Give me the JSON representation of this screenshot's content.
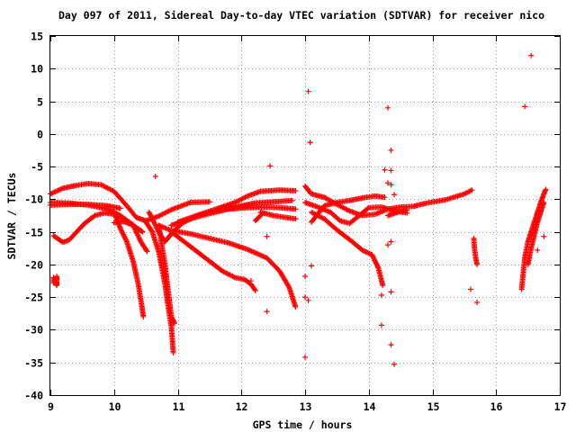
{
  "chart_data": {
    "type": "scatter",
    "title": "Day 097 of 2011, Sidereal Day-to-day VTEC variation (SDTVAR) for receiver nico",
    "xlabel": "GPS time / hours",
    "ylabel": "SDTVAR / TECUs",
    "xlim": [
      9,
      17
    ],
    "ylim": [
      -40,
      15
    ],
    "xticks": [
      "9",
      "10",
      "11",
      "12",
      "13",
      "14",
      "15",
      "16",
      "17"
    ],
    "yticks": [
      "15",
      "10",
      "5",
      "0",
      "-5",
      "-10",
      "-15",
      "-20",
      "-25",
      "-30",
      "-35",
      "-40"
    ],
    "grid": true,
    "marker": "plus",
    "color": "#ff0000",
    "series": [
      {
        "points": [
          [
            9.0,
            -9.2
          ],
          [
            9.2,
            -8.3
          ],
          [
            9.4,
            -7.9
          ],
          [
            9.6,
            -7.6
          ],
          [
            9.8,
            -7.8
          ],
          [
            10.0,
            -8.8
          ],
          [
            10.2,
            -11.0
          ],
          [
            10.35,
            -12.8
          ],
          [
            10.5,
            -13.3
          ],
          [
            10.7,
            -12.6
          ],
          [
            10.9,
            -11.6
          ],
          [
            11.2,
            -10.5
          ],
          [
            11.5,
            -10.4
          ]
        ]
      },
      {
        "points": [
          [
            9.0,
            -10.5
          ],
          [
            9.3,
            -10.6
          ],
          [
            9.6,
            -10.9
          ],
          [
            9.9,
            -11.5
          ],
          [
            10.1,
            -12.5
          ],
          [
            10.3,
            -14.0
          ],
          [
            10.45,
            -15.0
          ]
        ]
      },
      {
        "points": [
          [
            9.0,
            -10.9
          ],
          [
            9.3,
            -10.8
          ],
          [
            9.6,
            -10.8
          ],
          [
            9.9,
            -11.0
          ],
          [
            10.1,
            -11.4
          ]
        ]
      },
      {
        "points": [
          [
            9.05,
            -15.6
          ],
          [
            9.2,
            -16.6
          ],
          [
            9.3,
            -16.2
          ],
          [
            9.45,
            -14.6
          ],
          [
            9.55,
            -13.6
          ],
          [
            9.7,
            -12.5
          ],
          [
            9.85,
            -12.1
          ],
          [
            10.0,
            -12.3
          ],
          [
            10.15,
            -13.0
          ],
          [
            10.3,
            -13.9
          ]
        ]
      },
      {
        "points": [
          [
            10.0,
            -13.6
          ],
          [
            10.15,
            -13.4
          ],
          [
            10.3,
            -14.0
          ],
          [
            10.42,
            -16.5
          ],
          [
            10.52,
            -18.0
          ]
        ]
      },
      {
        "points": [
          [
            10.0,
            -12.0
          ],
          [
            10.1,
            -14.5
          ],
          [
            10.2,
            -16.5
          ],
          [
            10.3,
            -19.5
          ],
          [
            10.38,
            -23.0
          ],
          [
            10.43,
            -26.0
          ],
          [
            10.46,
            -28.0
          ]
        ]
      },
      {
        "points": [
          [
            10.5,
            -13.5
          ],
          [
            10.6,
            -15.0
          ],
          [
            10.7,
            -18.0
          ],
          [
            10.8,
            -23.0
          ],
          [
            10.85,
            -26.5
          ],
          [
            10.9,
            -29.5
          ],
          [
            10.93,
            -33.5
          ]
        ]
      },
      {
        "points": [
          [
            10.7,
            -14.0
          ],
          [
            10.75,
            -17.0
          ],
          [
            10.8,
            -20.0
          ],
          [
            10.85,
            -24.0
          ],
          [
            10.9,
            -28.0
          ],
          [
            10.95,
            -29.0
          ]
        ]
      },
      {
        "points": [
          [
            10.55,
            -12.0
          ],
          [
            10.7,
            -15.0
          ],
          [
            10.8,
            -16.5
          ],
          [
            10.9,
            -15.3
          ],
          [
            11.05,
            -13.8
          ],
          [
            11.3,
            -12.5
          ],
          [
            11.6,
            -11.8
          ],
          [
            11.9,
            -11.2
          ],
          [
            12.2,
            -10.6
          ],
          [
            12.5,
            -10.4
          ],
          [
            12.8,
            -10.2
          ]
        ]
      },
      {
        "points": [
          [
            10.9,
            -14.0
          ],
          [
            11.2,
            -13.0
          ],
          [
            11.5,
            -12.2
          ],
          [
            11.8,
            -11.5
          ],
          [
            12.1,
            -11.0
          ]
        ]
      },
      {
        "points": [
          [
            11.0,
            -13.5
          ],
          [
            11.3,
            -12.5
          ],
          [
            11.6,
            -11.5
          ],
          [
            11.9,
            -10.5
          ],
          [
            12.1,
            -9.5
          ],
          [
            12.3,
            -8.8
          ],
          [
            12.6,
            -8.6
          ],
          [
            12.85,
            -8.7
          ]
        ]
      },
      {
        "points": [
          [
            11.8,
            -11.5
          ],
          [
            12.1,
            -11.3
          ],
          [
            12.4,
            -11.2
          ],
          [
            12.6,
            -11.3
          ],
          [
            12.85,
            -11.5
          ]
        ]
      },
      {
        "points": [
          [
            12.3,
            -12.0
          ],
          [
            12.5,
            -12.5
          ],
          [
            12.7,
            -12.8
          ],
          [
            12.85,
            -13.0
          ]
        ]
      },
      {
        "points": [
          [
            10.7,
            -14.0
          ],
          [
            10.9,
            -14.8
          ],
          [
            11.2,
            -15.3
          ],
          [
            11.5,
            -16.0
          ],
          [
            11.8,
            -16.7
          ],
          [
            12.1,
            -17.7
          ],
          [
            12.4,
            -19.0
          ],
          [
            12.6,
            -21.0
          ],
          [
            12.75,
            -23.5
          ],
          [
            12.85,
            -26.5
          ]
        ]
      },
      {
        "points": [
          [
            10.9,
            -15.0
          ],
          [
            11.1,
            -16.5
          ],
          [
            11.3,
            -18.0
          ],
          [
            11.5,
            -19.5
          ],
          [
            11.7,
            -21.0
          ],
          [
            11.9,
            -22.0
          ],
          [
            12.05,
            -22.3
          ],
          [
            12.15,
            -23.0
          ],
          [
            12.22,
            -24.0
          ]
        ]
      },
      {
        "points": [
          [
            13.0,
            -8.0
          ],
          [
            13.1,
            -9.2
          ],
          [
            13.3,
            -9.7
          ],
          [
            13.5,
            -10.8
          ],
          [
            13.7,
            -11.8
          ],
          [
            13.9,
            -12.5
          ],
          [
            14.1,
            -12.3
          ],
          [
            14.3,
            -11.5
          ],
          [
            14.5,
            -11.2
          ],
          [
            14.7,
            -11.1
          ],
          [
            14.9,
            -10.6
          ],
          [
            15.2,
            -10.1
          ],
          [
            15.5,
            -9.2
          ],
          [
            15.62,
            -8.6
          ]
        ]
      },
      {
        "points": [
          [
            13.0,
            -10.5
          ],
          [
            13.2,
            -11.2
          ],
          [
            13.4,
            -12.0
          ],
          [
            13.55,
            -13.3
          ],
          [
            13.7,
            -13.7
          ],
          [
            13.85,
            -12.5
          ],
          [
            14.0,
            -11.3
          ],
          [
            14.2,
            -11.2
          ],
          [
            14.4,
            -11.8
          ],
          [
            14.6,
            -12.1
          ]
        ]
      },
      {
        "points": [
          [
            13.1,
            -13.5
          ],
          [
            13.3,
            -11.0
          ],
          [
            13.5,
            -10.5
          ],
          [
            13.7,
            -10.2
          ],
          [
            13.9,
            -9.8
          ],
          [
            14.1,
            -9.5
          ],
          [
            14.25,
            -9.7
          ]
        ]
      },
      {
        "points": [
          [
            13.1,
            -12.0
          ],
          [
            13.3,
            -13.0
          ],
          [
            13.5,
            -14.7
          ],
          [
            13.7,
            -16.2
          ],
          [
            13.9,
            -17.8
          ],
          [
            14.05,
            -18.5
          ],
          [
            14.15,
            -20.5
          ],
          [
            14.22,
            -23.2
          ]
        ]
      },
      {
        "points": [
          [
            14.3,
            -12.5
          ],
          [
            14.45,
            -12.0
          ],
          [
            14.6,
            -11.7
          ]
        ]
      },
      {
        "points": [
          [
            12.22,
            -13.3
          ],
          [
            12.27,
            -12.8
          ],
          [
            12.32,
            -12.3
          ]
        ]
      },
      {
        "points": [
          [
            16.4,
            -23.8
          ],
          [
            16.45,
            -19.0
          ],
          [
            16.5,
            -16.5
          ],
          [
            16.55,
            -15.0
          ],
          [
            16.6,
            -13.5
          ],
          [
            16.65,
            -12.0
          ],
          [
            16.7,
            -10.5
          ],
          [
            16.75,
            -9.2
          ],
          [
            16.78,
            -8.5
          ]
        ]
      },
      {
        "points": [
          [
            16.5,
            -20.0
          ],
          [
            16.55,
            -17.5
          ],
          [
            16.6,
            -15.5
          ],
          [
            16.65,
            -13.5
          ],
          [
            16.7,
            -12.0
          ],
          [
            16.75,
            -10.5
          ]
        ]
      },
      {
        "points": [
          [
            15.65,
            -16.0
          ],
          [
            15.66,
            -17.5
          ],
          [
            15.68,
            -19.0
          ],
          [
            15.7,
            -20.0
          ]
        ]
      },
      {
        "points": [
          [
            9.1,
            -21.8
          ],
          [
            9.1,
            -22.5
          ],
          [
            9.1,
            -23.2
          ],
          [
            9.05,
            -22.0
          ],
          [
            9.05,
            -22.8
          ]
        ]
      },
      {
        "points": [
          [
            10.65,
            -6.5
          ],
          [
            12.45,
            -4.9
          ],
          [
            12.4,
            -15.7
          ],
          [
            12.15,
            -22.5
          ],
          [
            12.4,
            -27.2
          ],
          [
            13.0,
            -21.8
          ],
          [
            13.0,
            -25.0
          ],
          [
            13.05,
            -25.5
          ],
          [
            13.0,
            -34.2
          ],
          [
            13.1,
            -20.2
          ],
          [
            13.05,
            6.5
          ],
          [
            13.08,
            -1.3
          ],
          [
            14.3,
            4.0
          ],
          [
            14.35,
            -2.5
          ],
          [
            14.25,
            -5.5
          ],
          [
            14.35,
            -5.6
          ],
          [
            14.3,
            -7.5
          ],
          [
            14.35,
            -7.8
          ],
          [
            14.4,
            -9.3
          ],
          [
            14.3,
            -17.0
          ],
          [
            14.35,
            -16.5
          ],
          [
            14.2,
            -24.7
          ],
          [
            14.35,
            -24.2
          ],
          [
            14.2,
            -29.3
          ],
          [
            14.35,
            -32.3
          ],
          [
            14.4,
            -35.3
          ],
          [
            15.6,
            -23.8
          ],
          [
            15.7,
            -25.8
          ],
          [
            16.45,
            4.2
          ],
          [
            16.55,
            12.0
          ],
          [
            16.65,
            -17.8
          ],
          [
            16.75,
            -15.7
          ]
        ]
      }
    ]
  }
}
